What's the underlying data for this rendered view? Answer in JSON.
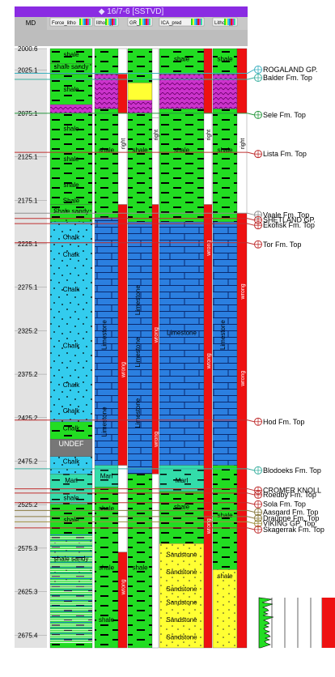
{
  "window": {
    "title": "◆ 16/7-6 [SSTVD]"
  },
  "header": {
    "md_label": "MD",
    "track_labels": [
      "Force_litho",
      "lithology",
      "GR_pred",
      "ICA_pred",
      "Lithology"
    ]
  },
  "depth_scale": {
    "ticks": [
      "2000.6",
      "2025.1",
      "2075.1",
      "2125.1",
      "2175.1",
      "2225.1",
      "2275.1",
      "2325.2",
      "2375.2",
      "2425.2",
      "2475.2",
      "2525.2",
      "2575.3",
      "2625.3",
      "2675.4"
    ]
  },
  "lithology_labels": [
    {
      "text": "shale",
      "track": 0
    },
    {
      "text": "shale sandy",
      "track": 0
    },
    {
      "text": "shale",
      "track": 0
    },
    {
      "text": "shale",
      "track": 0
    },
    {
      "text": "shale",
      "track": 0
    },
    {
      "text": "shale",
      "track": 0
    },
    {
      "text": "Shale",
      "track": 0
    },
    {
      "text": "Shale sandy",
      "track": 0
    },
    {
      "text": "Chalk",
      "track": 0
    },
    {
      "text": "Chalk",
      "track": 0
    },
    {
      "text": "Chalk",
      "track": 0
    },
    {
      "text": "Chalk",
      "track": 0
    },
    {
      "text": "Chalk",
      "track": 0
    },
    {
      "text": "Chalk",
      "track": 0
    },
    {
      "text": "Chalk",
      "track": 0
    },
    {
      "text": "UNDEF",
      "track": 0
    },
    {
      "text": "Chalk",
      "track": 0
    },
    {
      "text": "Marl",
      "track": 0
    },
    {
      "text": "shale",
      "track": 0
    },
    {
      "text": "shale",
      "track": 0
    },
    {
      "text": "shale sandy",
      "track": 0
    },
    {
      "text": "shale",
      "track": 1
    },
    {
      "text": "Limestone",
      "track": 1
    },
    {
      "text": "Limestone",
      "track": 1
    },
    {
      "text": "Marl",
      "track": 1
    },
    {
      "text": "shale",
      "track": 1
    },
    {
      "text": "shale",
      "track": 1
    },
    {
      "text": "shale",
      "track": 1
    },
    {
      "text": "shale",
      "track": 2
    },
    {
      "text": "Limestone",
      "track": 2
    },
    {
      "text": "Limestone",
      "track": 2
    },
    {
      "text": "Limestone",
      "track": 2
    },
    {
      "text": "shale",
      "track": 2
    },
    {
      "text": "shale",
      "track": 3
    },
    {
      "text": "shale",
      "track": 3
    },
    {
      "text": "Limestone",
      "track": 3
    },
    {
      "text": "Marl",
      "track": 3
    },
    {
      "text": "shale",
      "track": 3
    },
    {
      "text": "Sandstone",
      "track": 3
    },
    {
      "text": "Sandstone",
      "track": 3
    },
    {
      "text": "Sandstone",
      "track": 3
    },
    {
      "text": "Sandstone",
      "track": 3
    },
    {
      "text": "Sandstone",
      "track": 3
    },
    {
      "text": "Sandstone",
      "track": 3
    },
    {
      "text": "shale",
      "track": 4
    },
    {
      "text": "shale",
      "track": 4
    },
    {
      "text": "Limestone",
      "track": 4
    },
    {
      "text": "shale",
      "track": 4
    },
    {
      "text": "shale",
      "track": 4
    }
  ],
  "flag_labels": [
    "right",
    "right",
    "wrong",
    "wrong",
    "wrong",
    "wrong",
    "wrong",
    "wrong",
    "wrong",
    "wrong",
    "right",
    "right",
    "wrong"
  ],
  "formation_tops": [
    {
      "name": "ROGALAND GP.",
      "color": "#3ab0c0"
    },
    {
      "name": "Balder Fm. Top",
      "color": "#3ab0a0"
    },
    {
      "name": "Sele Fm. Top",
      "color": "#2a9a40"
    },
    {
      "name": "Lista Fm. Top",
      "color": "#c03030"
    },
    {
      "name": "Vaale Fm. Top",
      "color": "#909090"
    },
    {
      "name": "SHETLAND GP.",
      "color": "#c03030"
    },
    {
      "name": "Ekofisk Fm. Top",
      "color": "#c03030"
    },
    {
      "name": "Tor Fm. Top",
      "color": "#c03030"
    },
    {
      "name": "Hod Fm. Top",
      "color": "#c03030"
    },
    {
      "name": "Blodoeks Fm. Top",
      "color": "#3ab0a0"
    },
    {
      "name": "CROMER KNOLL",
      "color": "#c03030"
    },
    {
      "name": "Roedby Fm. Top",
      "color": "#c03030"
    },
    {
      "name": "Sola Fm. Top",
      "color": "#c03030"
    },
    {
      "name": "Aasgard Fm. Top",
      "color": "#8a7a40"
    },
    {
      "name": "Draupne Fm. Top",
      "color": "#8a7a40"
    },
    {
      "name": "VIKING GP. Top",
      "color": "#a09040"
    },
    {
      "name": "Skagerrak Fm. Top",
      "color": "#c03030"
    }
  ],
  "colors": {
    "shale": "#22dd22",
    "sandstone": "#ffff33",
    "chalk": "#33ccee",
    "limestone": "#2b7fe0",
    "marl": "#33ddaa",
    "tuff": "#cc33cc",
    "undef": "#777777",
    "wrong": "#ee1111",
    "right": "#ffffff",
    "header": "#c8c8c8",
    "title": "#8a2be2"
  }
}
